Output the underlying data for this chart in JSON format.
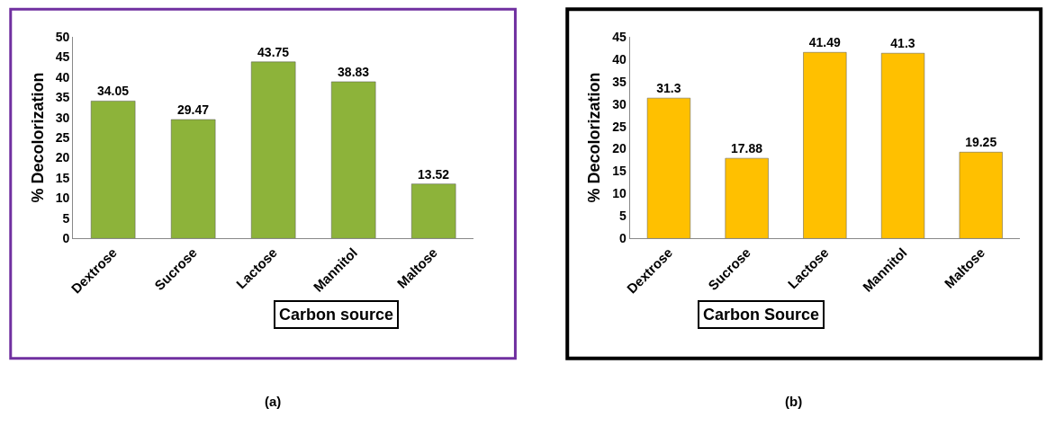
{
  "chart_data": [
    {
      "type": "bar",
      "xlabel": "Carbon source",
      "ylabel": "% Decolorization",
      "categories": [
        "Dextrose",
        "Sucrose",
        "Lactose",
        "Mannitol",
        "Maltose"
      ],
      "values": [
        34.05,
        29.47,
        43.75,
        38.83,
        13.52
      ],
      "color": "#8db33a",
      "ylim": [
        0,
        50
      ],
      "yticks": [
        0,
        5,
        10,
        15,
        20,
        25,
        30,
        35,
        40,
        45,
        50
      ],
      "data_labels": true,
      "annotations": [
        "(a)"
      ]
    },
    {
      "type": "bar",
      "xlabel": "Carbon Source",
      "ylabel": "% Decolorization",
      "categories": [
        "Dextrose",
        "Sucrose",
        "Lactose",
        "Mannitol",
        "Maltose"
      ],
      "values": [
        31.3,
        17.88,
        41.49,
        41.3,
        19.25
      ],
      "color": "#ffc000",
      "ylim": [
        0,
        45
      ],
      "yticks": [
        0,
        5,
        10,
        15,
        20,
        25,
        30,
        35,
        40,
        45
      ],
      "data_labels": true,
      "annotations": [
        "(b)"
      ]
    }
  ]
}
